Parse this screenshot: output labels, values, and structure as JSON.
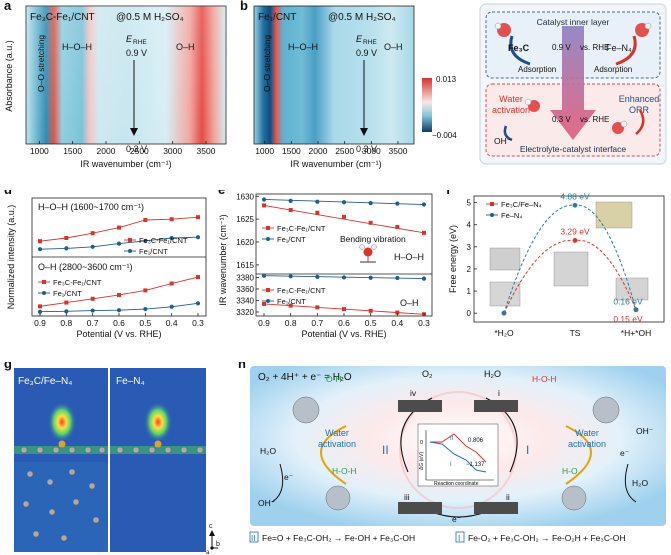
{
  "panel_a": {
    "letter": "a",
    "title": "Fe₃C-Fe₁/CNT",
    "condition": "@0.5 M H₂SO₄",
    "ylabel": "Absorbance (a.u.)",
    "xlabel": "IR wavenumber (cm⁻¹)",
    "xticks": [
      "1000",
      "1500",
      "2000",
      "2500",
      "3000",
      "3500"
    ],
    "band_oo": "O–O stretching",
    "band_hoh": "H–O–H",
    "band_oh": "O–H",
    "erhe": "E",
    "erhe_sub": "RHE",
    "v_top": "0.9 V",
    "v_bottom": "0.3 V"
  },
  "panel_b": {
    "letter": "b",
    "title": "Fe₁/CNT",
    "condition": "@0.5 M H₂SO₄",
    "xlabel": "IR wavenumber (cm⁻¹)",
    "xticks": [
      "1000",
      "1500",
      "2000",
      "2500",
      "3000",
      "3500"
    ],
    "band_oo": "O–O stretching",
    "band_hoh": "H–O–H",
    "band_oh": "O–H",
    "erhe": "E",
    "erhe_sub": "RHE",
    "v_top": "0.9 V",
    "v_bottom": "0.3 V",
    "scale_max": "0.013",
    "scale_min": "−0.004"
  },
  "panel_c": {
    "letter": "c",
    "inner_layer": "Catalyst inner layer",
    "fe3c": "Fe₃C",
    "fen4": "Fe–N₄",
    "v09": "0.9 V",
    "vs_rhe": "vs. RHE",
    "adsorption_left": "Adsorption",
    "adsorption_right": "Adsorption",
    "water_activation": "Water activation",
    "enhanced_orr": "Enhanced ORR",
    "v03": "0.3 V",
    "oh_minus": "OH⁻",
    "interface": "Electrolyte-catalyst interface"
  },
  "panel_d": {
    "letter": "d"
  },
  "panel_e": {
    "letter": "e",
    "bending_label": "Bending vibration"
  },
  "panel_f": {
    "letter": "f"
  },
  "panel_g": {
    "letter": "g",
    "left_label": "Fe₃C/Fe–N₄",
    "right_label": "Fe–N₄",
    "axis_c": "c",
    "axis_b": "b",
    "axis_a": "a"
  },
  "panel_h": {
    "letter": "h",
    "equation": "O₂ + 4H⁺ + e⁻ = H₂O",
    "o2": "O₂",
    "h2o_top": "H₂O",
    "h2o_left": "H₂O",
    "h2o_right": "H₂O",
    "oh_left": "OH⁻",
    "oh_right": "OH⁻",
    "e_left": "e⁻",
    "e_right": "e⁻",
    "e_bottom": "e⁻",
    "oh_label_tl": "O-H",
    "hoh_label_tr": "H-O-H",
    "hoh_label_left": "H-O-H",
    "ho_label_right": "H-O",
    "water_activation_left": "Water activation",
    "water_activation_right": "Water activation",
    "roman_ii": "II",
    "roman_i": "I",
    "step_iv": "iv",
    "step_i": "i",
    "step_iii": "iii",
    "step_ii": "ii",
    "inset_ylabel": "ΔG (eV)",
    "inset_xlabel": "Reaction coordinate",
    "inset_zero": "0",
    "inset_val1": "0.806",
    "inset_val2": "−1.137",
    "eq_left_num": "II",
    "eq_left": "Fe=O + Fe₃C-OH₂ → Fe-OH + Fe₃C-OH",
    "eq_right_num": "I",
    "eq_right": "Fe-O₂ + Fe₃C-OH₂ → Fe-O₂H + Fe₃C-OH"
  },
  "colors": {
    "red": "#d9342b",
    "blue": "#1f5f8b",
    "teal": "#2a7d9e",
    "navy": "#0d3b66"
  },
  "chart_data": [
    {
      "id": "d_top",
      "type": "line",
      "title": "H–O–H (1600~1700 cm⁻¹)",
      "x": [
        0.9,
        0.8,
        0.7,
        0.6,
        0.5,
        0.4,
        0.3
      ],
      "series": [
        {
          "name": "Fe₃C-Fe₁/CNT",
          "values": [
            0.32,
            0.4,
            0.52,
            0.66,
            0.85,
            0.87,
            0.92
          ]
        },
        {
          "name": "Fe₁/CNT",
          "values": [
            0.12,
            0.14,
            0.18,
            0.26,
            0.33,
            0.4,
            0.42
          ]
        }
      ],
      "ylim": [
        0,
        1
      ]
    },
    {
      "id": "d_bottom",
      "type": "line",
      "title": "O–H (2800~3600 cm⁻¹)",
      "x": [
        0.9,
        0.8,
        0.7,
        0.6,
        0.5,
        0.4,
        0.3
      ],
      "series": [
        {
          "name": "Fe₃C-Fe₁/CNT",
          "values": [
            0.2,
            0.3,
            0.4,
            0.5,
            0.62,
            0.8,
            0.97
          ]
        },
        {
          "name": "Fe₁/CNT",
          "values": [
            0.06,
            0.07,
            0.09,
            0.1,
            0.13,
            0.19,
            0.28
          ]
        }
      ],
      "ylim": [
        0,
        1.05
      ],
      "ylabel": "Normalized intensity (a.u.)",
      "xlabel": "Potential (V vs. RHE)",
      "xticks": [
        "0.9",
        "0.8",
        "0.7",
        "0.6",
        "0.5",
        "0.4",
        "0.3"
      ]
    },
    {
      "id": "e_top",
      "type": "scatter",
      "title": "H–O–H",
      "x": [
        0.9,
        0.8,
        0.7,
        0.6,
        0.5,
        0.4,
        0.3
      ],
      "series": [
        {
          "name": "Fe₃C-Fe₁/CNT",
          "values": [
            1628.0,
            1627.0,
            1626.4,
            1625.5,
            1624.2,
            1623.3,
            1622.0
          ]
        },
        {
          "name": "Fe₁/CNT",
          "values": [
            1629.3,
            1629.0,
            1628.8,
            1628.7,
            1628.5,
            1628.4,
            1628.2
          ]
        }
      ],
      "ylim": [
        1613,
        1630.5
      ],
      "yticks": [
        "1615",
        "1620",
        "1625",
        "1630"
      ]
    },
    {
      "id": "e_bottom",
      "type": "scatter",
      "title": "O–H",
      "x": [
        0.9,
        0.8,
        0.7,
        0.6,
        0.5,
        0.4,
        0.3
      ],
      "series": [
        {
          "name": "Fe₃C-Fe₁/CNT",
          "values": [
            3334,
            3331,
            3328,
            3325,
            3322,
            3319,
            3316
          ]
        },
        {
          "name": "Fe₁/CNT",
          "values": [
            3383,
            3382,
            3381,
            3380,
            3379.5,
            3379,
            3378
          ]
        }
      ],
      "ylim": [
        3313,
        3386
      ],
      "yticks": [
        "3320",
        "3340",
        "3360",
        "3380"
      ],
      "ylabel": "IR wavenumber (cm⁻¹)",
      "xlabel": "Potential (V vs. RHE)",
      "xticks": [
        "0.9",
        "0.8",
        "0.7",
        "0.6",
        "0.5",
        "0.4",
        "0.3"
      ]
    },
    {
      "id": "f",
      "type": "line",
      "categories": [
        "*H₂O",
        "TS",
        "*H+*OH"
      ],
      "series": [
        {
          "name": "Fe₃C/Fe–N₄",
          "values": [
            0,
            3.29,
            0.15
          ],
          "labels": [
            "",
            "3.29 eV",
            "0.15 eV"
          ]
        },
        {
          "name": "Fe–N₄",
          "values": [
            0,
            4.88,
            0.16
          ],
          "labels": [
            "",
            "4.88 eV",
            "0.16 eV"
          ]
        }
      ],
      "ylim": [
        -0.4,
        5.3
      ],
      "yticks": [
        "0",
        "1",
        "2",
        "3",
        "4",
        "5"
      ],
      "ylabel": "Free energy (eV)"
    }
  ]
}
